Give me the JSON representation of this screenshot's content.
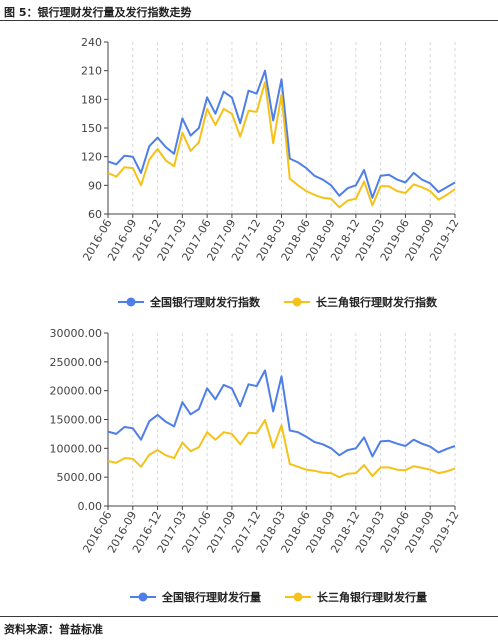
{
  "figure_title": "图 5：银行理财发行量及发行指数走势",
  "source": "资料来源：普益标准",
  "colors": {
    "blue": "#4e7ee8",
    "yellow": "#f5c21a",
    "grid": "#d9d9d9",
    "axis": "#444444"
  },
  "x_tick_labels": [
    "2016-06",
    "2016-09",
    "2016-12",
    "2017-03",
    "2017-06",
    "2017-09",
    "2017-12",
    "2018-03",
    "2018-06",
    "2018-09",
    "2018-12",
    "2019-03",
    "2019-06",
    "2019-09",
    "2019-12"
  ],
  "chart_data": [
    {
      "type": "line",
      "title": "",
      "xlabel": "",
      "ylabel": "",
      "ylim": [
        60,
        240
      ],
      "y_ticks": [
        "240",
        "210",
        "180",
        "150",
        "120",
        "90",
        "60"
      ],
      "y_tick_values": [
        240,
        210,
        180,
        150,
        120,
        90,
        60
      ],
      "grid": "vertical dashed",
      "legend_position": "bottom-center",
      "series": [
        {
          "name": "全国银行理财发行指数",
          "color": "#4e7ee8",
          "values": [
            115,
            112,
            121,
            120,
            103,
            131,
            140,
            130,
            123,
            160,
            142,
            150,
            182,
            165,
            188,
            182,
            155,
            189,
            186,
            210,
            158,
            201,
            118,
            114,
            108,
            100,
            96,
            90,
            79,
            87,
            90,
            106,
            77,
            100,
            101,
            96,
            93,
            103,
            96,
            92,
            83,
            88,
            93
          ]
        },
        {
          "name": "长三角银行理财发行指数",
          "color": "#f5c21a",
          "values": [
            103,
            99,
            109,
            108,
            90,
            117,
            128,
            116,
            110,
            145,
            126,
            135,
            170,
            153,
            170,
            165,
            141,
            168,
            167,
            198,
            134,
            185,
            97,
            90,
            84,
            80,
            77,
            76,
            67,
            74,
            76,
            94,
            69,
            89,
            89,
            84,
            82,
            91,
            88,
            84,
            75,
            80,
            86
          ]
        }
      ]
    },
    {
      "type": "line",
      "title": "",
      "xlabel": "",
      "ylabel": "",
      "ylim": [
        0,
        30000
      ],
      "y_ticks": [
        "30000.00",
        "25000.00",
        "20000.00",
        "15000.00",
        "10000.00",
        "5000.00",
        "0.00"
      ],
      "y_tick_values": [
        30000,
        25000,
        20000,
        15000,
        10000,
        5000,
        0
      ],
      "grid": "vertical dashed",
      "legend_position": "bottom-center",
      "series": [
        {
          "name": "全国银行理财发行量",
          "color": "#4e7ee8",
          "values": [
            12900,
            12500,
            13700,
            13500,
            11500,
            14700,
            15800,
            14600,
            13800,
            18000,
            15900,
            16800,
            20400,
            18500,
            21000,
            20400,
            17300,
            21100,
            20800,
            23500,
            16400,
            22500,
            13100,
            12800,
            12000,
            11100,
            10700,
            10000,
            8800,
            9700,
            10000,
            11900,
            8600,
            11200,
            11300,
            10800,
            10400,
            11500,
            10800,
            10300,
            9300,
            9900,
            10400
          ]
        },
        {
          "name": "长三角银行理财发行量",
          "color": "#f5c21a",
          "values": [
            7800,
            7500,
            8300,
            8200,
            6800,
            8900,
            9700,
            8800,
            8300,
            11000,
            9500,
            10200,
            12800,
            11500,
            12800,
            12500,
            10700,
            12700,
            12600,
            14900,
            10100,
            14000,
            7300,
            6800,
            6300,
            6100,
            5800,
            5700,
            5000,
            5600,
            5700,
            7100,
            5200,
            6700,
            6700,
            6300,
            6200,
            6900,
            6600,
            6300,
            5700,
            6000,
            6500
          ]
        }
      ]
    }
  ]
}
